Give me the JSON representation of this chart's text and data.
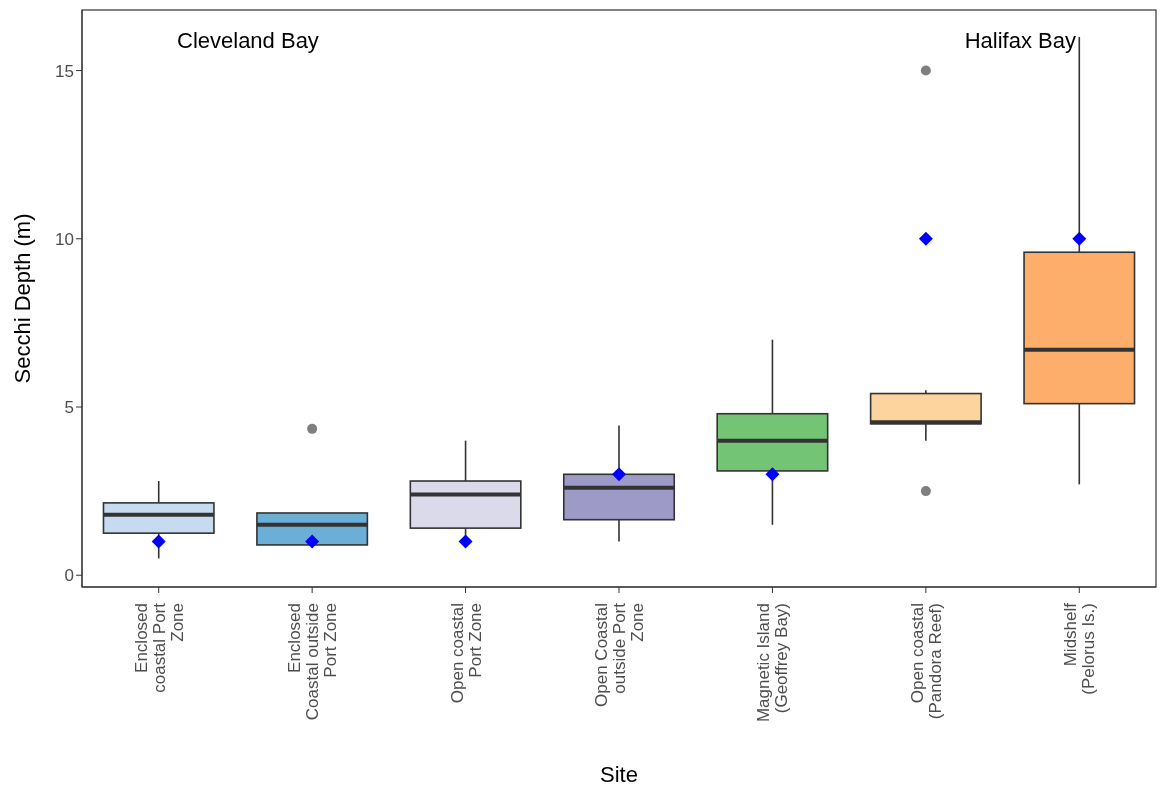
{
  "chart_data": {
    "type": "box",
    "xlabel": "Site",
    "ylabel": "Secchi Depth (m)",
    "categories": [
      "Enclosed coastal Port Zone",
      "Enclosed Coastal outside Port Zone",
      "Open coastal Port Zone",
      "Open Coastal outside Port Zone",
      "Magnetic Island (Geoffrey Bay)",
      "Open coastal (Pandora Reef)",
      "Midshelf (Pelorus Is.)"
    ],
    "colors": [
      "#c6dbef",
      "#6baed6",
      "#dadaeb",
      "#9e9ac8",
      "#74c476",
      "#fdd49e",
      "#fdae6b"
    ],
    "boxes": [
      {
        "low": 0.5,
        "q1": 1.25,
        "median": 1.8,
        "q3": 2.15,
        "high": 2.8,
        "mean": 1
      },
      {
        "low": 0.9,
        "q1": 0.9,
        "median": 1.5,
        "q3": 1.85,
        "high": 1.85,
        "mean": 1,
        "outliers": [
          4.35
        ]
      },
      {
        "low": 1,
        "q1": 1.4,
        "median": 2.4,
        "q3": 2.8,
        "high": 4,
        "mean": 1
      },
      {
        "low": 1,
        "q1": 1.65,
        "median": 2.6,
        "q3": 3,
        "high": 4.45,
        "mean": 3
      },
      {
        "low": 1.5,
        "q1": 3.1,
        "median": 4,
        "q3": 4.8,
        "high": 7,
        "mean": 3
      },
      {
        "low": 4,
        "q1": 4.5,
        "median": 4.55,
        "q3": 5.4,
        "high": 5.5,
        "mean": 10,
        "outliers": [
          15,
          2.5
        ]
      },
      {
        "low": 2.7,
        "q1": 5.1,
        "median": 6.7,
        "q3": 9.6,
        "high": 16,
        "mean": 10
      }
    ],
    "ylim": [
      -0.35,
      16.8
    ],
    "yticks": [
      0,
      5,
      10,
      15
    ],
    "annotations": [
      "Cleveland Bay",
      "Halifax Bay"
    ]
  }
}
